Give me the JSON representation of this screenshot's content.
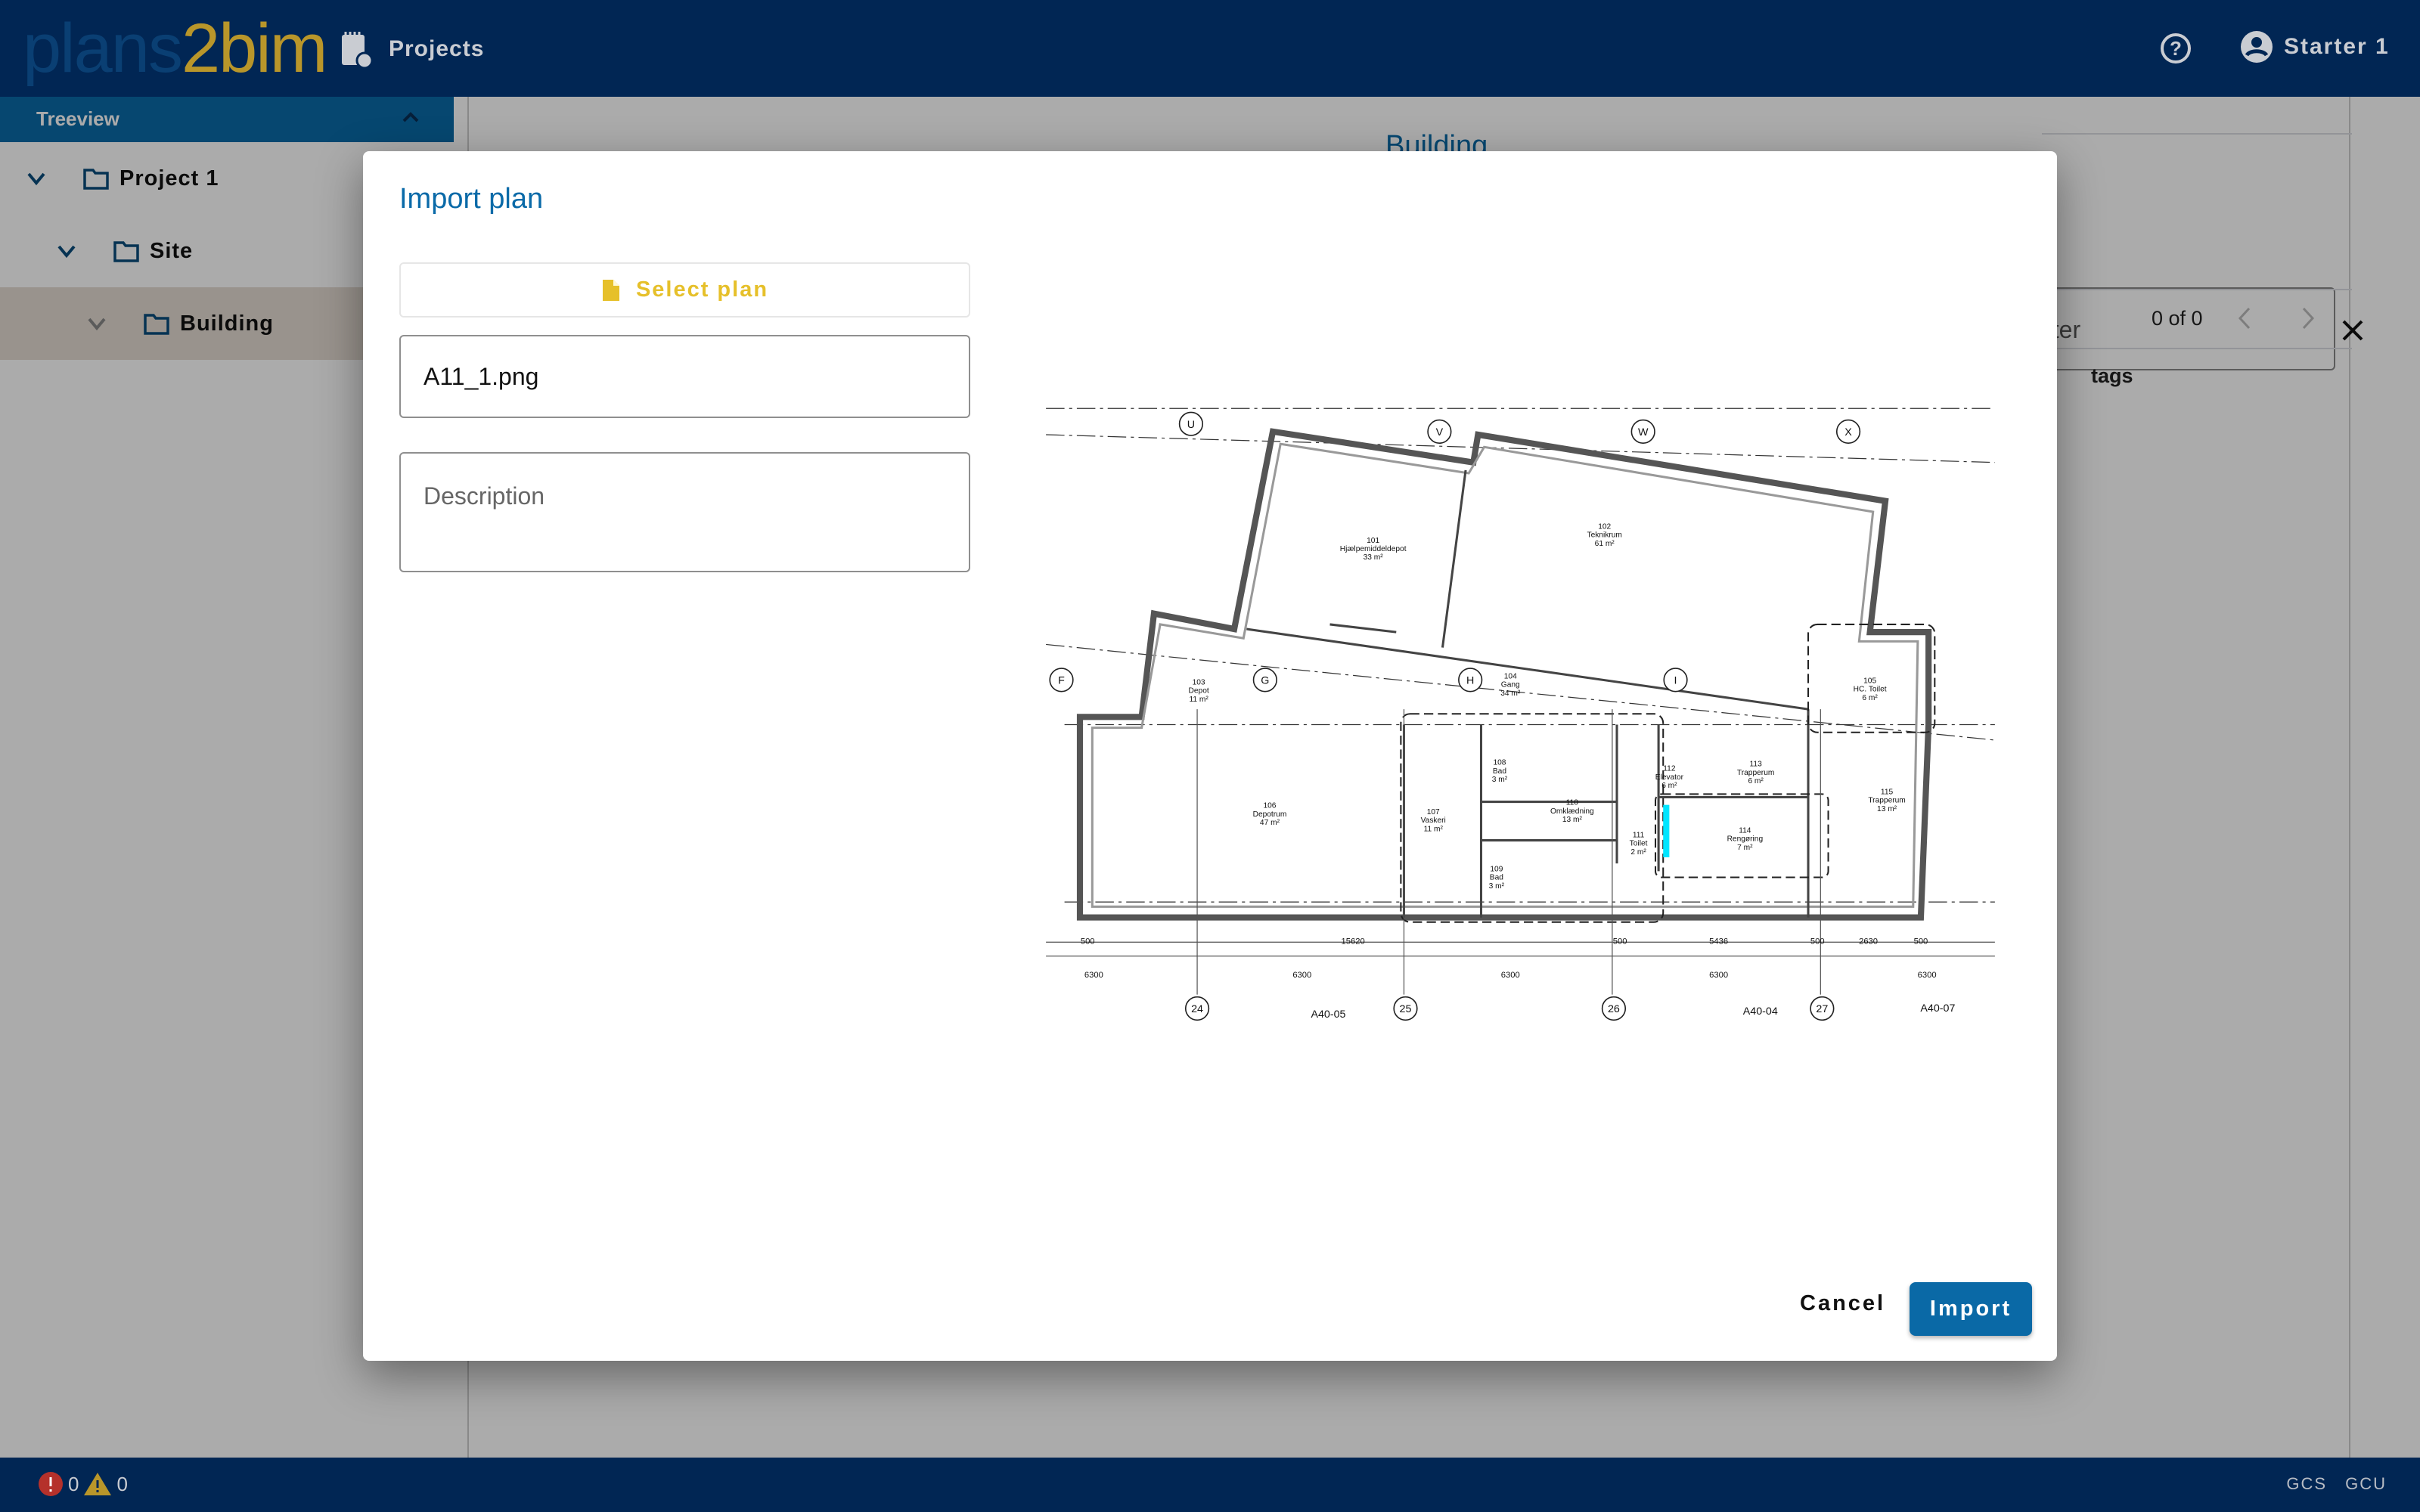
{
  "app": {
    "logo_part1": "plans",
    "logo_part2": "2bim",
    "nav_projects": "Projects",
    "user_name": "Starter 1"
  },
  "colors": {
    "navy": "#012654",
    "accent": "#0a6aa8",
    "select_plan": "#e6c02a",
    "error": "#c0392b",
    "warning": "#b9962a"
  },
  "icons": {
    "projects": "clipboard-gear-icon",
    "help": "help-circle-icon",
    "user": "account-circle-icon",
    "folder": "folder-outline-icon",
    "file": "file-icon"
  },
  "sidebar": {
    "title": "Treeview",
    "items": [
      {
        "label": "Project 1"
      },
      {
        "label": "Site"
      },
      {
        "label": "Building"
      }
    ]
  },
  "main": {
    "title": "Building",
    "filter_placeholder": "Filter",
    "pagination": "0 of 0",
    "column_tags": "tags"
  },
  "dialog": {
    "title": "Import plan",
    "select_plan_label": "Select plan",
    "filename_value": "A11_1.png",
    "description_placeholder": "Description",
    "cancel_label": "Cancel",
    "import_label": "Import"
  },
  "plan": {
    "rooms": [
      [
        "101",
        "Hjælpemiddeldepot",
        "33 m²"
      ],
      [
        "102",
        "Teknikrum",
        "61 m²"
      ],
      [
        "103",
        "Depot",
        "11 m²"
      ],
      [
        "104",
        "Gang",
        "34 m²"
      ],
      [
        "105",
        "HC. Toilet",
        "6 m²"
      ],
      [
        "106",
        "Depotrum",
        "47 m²"
      ],
      [
        "107",
        "Vaskeri",
        "11 m²"
      ],
      [
        "108",
        "Bad",
        "3 m²"
      ],
      [
        "109",
        "Bad",
        "3 m²"
      ],
      [
        "110",
        "Omklædning",
        "13 m²"
      ],
      [
        "111",
        "Toilet",
        "2 m²"
      ],
      [
        "112",
        "Elevator",
        "6 m²"
      ],
      [
        "113",
        "Trapperum",
        "6 m²"
      ],
      [
        "114",
        "Rengøring",
        "7 m²"
      ],
      [
        "115",
        "Trapperum",
        "13 m²"
      ]
    ],
    "grid_labels": [
      "U",
      "V",
      "W",
      "X",
      "F",
      "G",
      "H",
      "I",
      "24",
      "25",
      "26",
      "27"
    ],
    "sheet_refs": [
      "A40-05",
      "A40-04",
      "A40-07"
    ],
    "dims_top_row": [
      "500",
      "15620",
      "500",
      "5436",
      "500",
      "2630",
      "500"
    ],
    "dims_bottom_row": [
      "6300",
      "6300",
      "6300",
      "6300",
      "6300"
    ]
  },
  "statusbar": {
    "errors": "0",
    "warnings": "0",
    "gcs": "GCS",
    "gcu": "GCU"
  }
}
